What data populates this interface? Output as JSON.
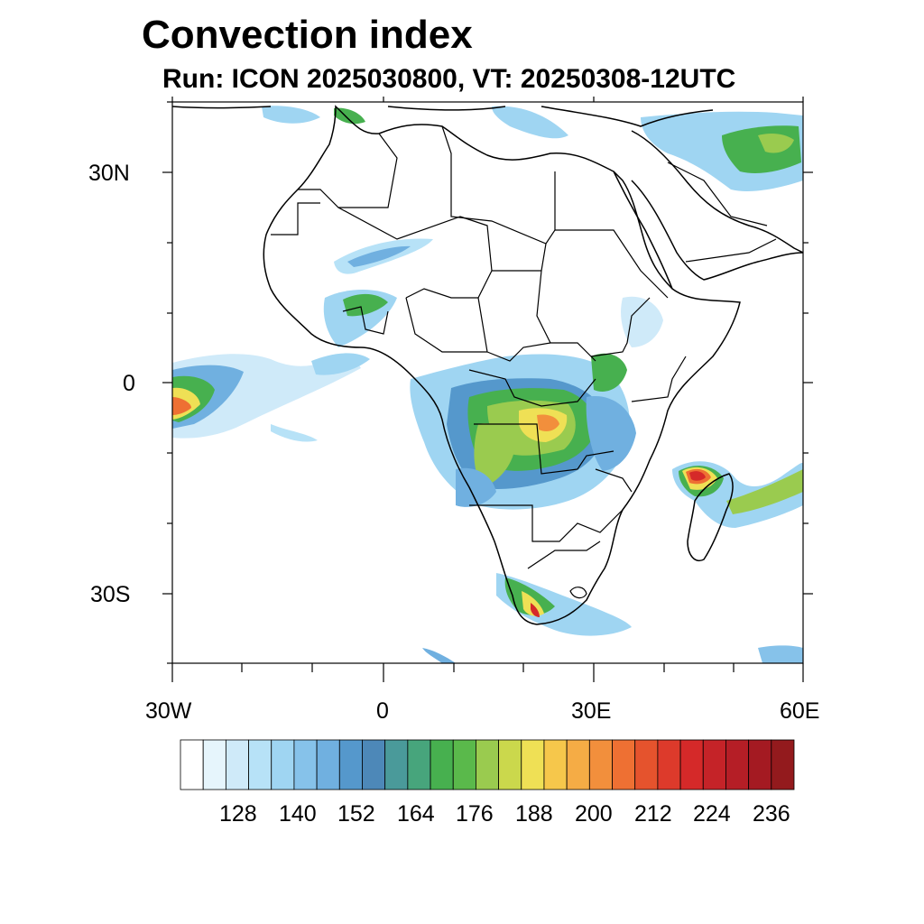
{
  "title": "Convection index",
  "subtitle": "Run: ICON 2025030800,  VT: 20250308-12UTC",
  "axes": {
    "lat_labels": [
      "30N",
      "0",
      "30S"
    ],
    "lon_labels": [
      "30W",
      "0",
      "30E",
      "60E"
    ]
  },
  "colorbar": {
    "tick_labels": [
      "128",
      "140",
      "152",
      "164",
      "176",
      "188",
      "200",
      "212",
      "224",
      "236"
    ],
    "colors": [
      "#ffffff",
      "#e6f5fc",
      "#cfeaf9",
      "#b7e2f7",
      "#9fd5f2",
      "#86c2ea",
      "#70b0e0",
      "#5598cc",
      "#4d88b8",
      "#4a9a9a",
      "#47a57c",
      "#47b04f",
      "#5ab94b",
      "#9acb4f",
      "#cbd84c",
      "#efe055",
      "#f6c74b",
      "#f5ac45",
      "#f28f3c",
      "#ee7033",
      "#e5532d",
      "#dd3a2b",
      "#d52929",
      "#c52328",
      "#b51e26",
      "#a41a22",
      "#931a1d"
    ],
    "levels": [
      116,
      120,
      124,
      128,
      132,
      136,
      140,
      144,
      148,
      152,
      156,
      160,
      164,
      168,
      172,
      176,
      180,
      184,
      188,
      192,
      196,
      200,
      204,
      208,
      212,
      216,
      220,
      224,
      228,
      232,
      236
    ]
  },
  "map": {
    "lat_range": [
      "40S",
      "40N"
    ],
    "lon_range": [
      "30W",
      "60E"
    ]
  }
}
